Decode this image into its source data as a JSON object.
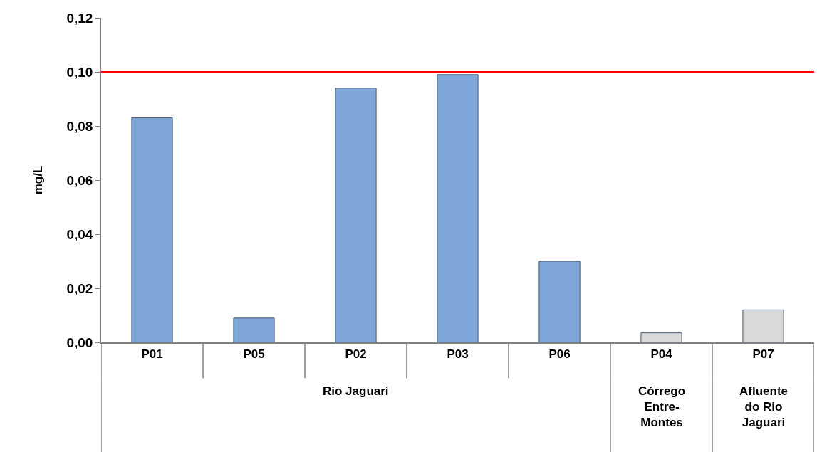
{
  "chart_data": {
    "type": "bar",
    "ylabel": "mg/L",
    "categories": [
      "P01",
      "P05",
      "P02",
      "P03",
      "P06",
      "P04",
      "P07"
    ],
    "values": [
      0.083,
      0.009,
      0.094,
      0.099,
      0.03,
      0.0035,
      0.012
    ],
    "colors": [
      "#7ea6d8",
      "#7ea6d8",
      "#7ea6d8",
      "#7ea6d8",
      "#7ea6d8",
      "#d9d9d9",
      "#d9d9d9"
    ],
    "ylim": [
      0,
      0.12
    ],
    "yticks": [
      {
        "value": 0,
        "label": "0,00"
      },
      {
        "value": 0.02,
        "label": "0,02"
      },
      {
        "value": 0.04,
        "label": "0,04"
      },
      {
        "value": 0.06,
        "label": "0,06"
      },
      {
        "value": 0.08,
        "label": "0,08"
      },
      {
        "value": 0.1,
        "label": "0,10"
      },
      {
        "value": 0.12,
        "label": "0,12"
      }
    ],
    "ref_lines": [
      {
        "axis": "y",
        "value": 0.1,
        "color": "#ff0000"
      }
    ],
    "annotations": [
      "Rio Jaguari",
      "Córrego Entre-Montes",
      "Afluente do Rio Jaguari"
    ]
  }
}
